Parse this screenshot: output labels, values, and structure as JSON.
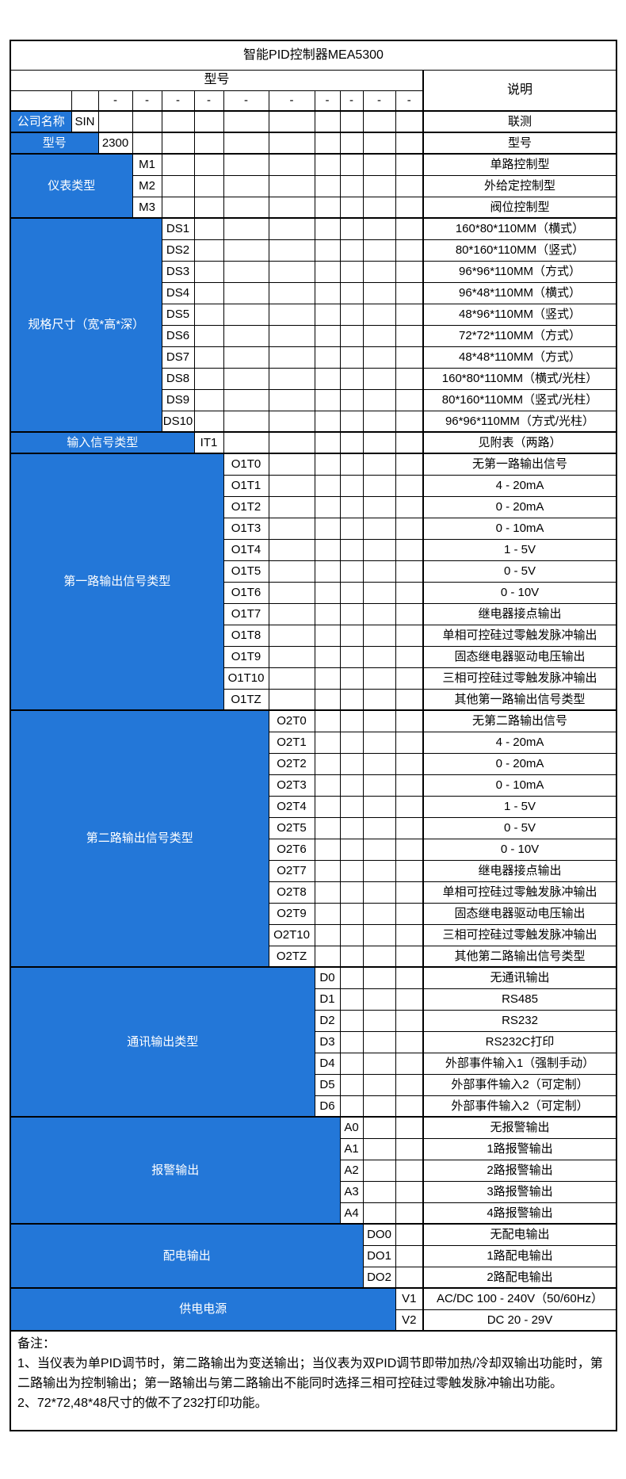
{
  "colors": {
    "label_bg": "#2377D8",
    "label_text": "#ffffff",
    "grid_line": "#000000"
  },
  "table": {
    "title": "智能PID控制器MEA5300",
    "model_header": "型号",
    "desc_header": "说明",
    "dash": "-",
    "dash_columns": [
      2,
      3,
      4,
      5,
      6,
      7,
      8,
      9,
      10,
      11
    ]
  },
  "sections": [
    {
      "label": "公司名称",
      "rows": [
        {
          "code": "SIN",
          "desc": "联测"
        }
      ]
    },
    {
      "label": "型号",
      "rows": [
        {
          "code": "2300",
          "desc": "型号"
        }
      ]
    },
    {
      "label": "仪表类型",
      "rows": [
        {
          "code": "M1",
          "desc": "单路控制型"
        },
        {
          "code": "M2",
          "desc": "外给定控制型"
        },
        {
          "code": "M3",
          "desc": "阀位控制型"
        }
      ]
    },
    {
      "label": "规格尺寸（宽*高*深）",
      "rows": [
        {
          "code": "DS1",
          "desc": "160*80*110MM（横式）"
        },
        {
          "code": "DS2",
          "desc": "80*160*110MM（竖式）"
        },
        {
          "code": "DS3",
          "desc": "96*96*110MM（方式）"
        },
        {
          "code": "DS4",
          "desc": "96*48*110MM（横式）"
        },
        {
          "code": "DS5",
          "desc": "48*96*110MM（竖式）"
        },
        {
          "code": "DS6",
          "desc": "72*72*110MM（方式）"
        },
        {
          "code": "DS7",
          "desc": "48*48*110MM（方式）"
        },
        {
          "code": "DS8",
          "desc": "160*80*110MM（横式/光柱）"
        },
        {
          "code": "DS9",
          "desc": "80*160*110MM（竖式/光柱）"
        },
        {
          "code": "DS10",
          "desc": "96*96*110MM（方式/光柱）"
        }
      ]
    },
    {
      "label": "输入信号类型",
      "rows": [
        {
          "code": "IT1",
          "desc": "见附表（两路）"
        }
      ]
    },
    {
      "label": "第一路输出信号类型",
      "rows": [
        {
          "code": "O1T0",
          "desc": "无第一路输出信号"
        },
        {
          "code": "O1T1",
          "desc": "4 - 20mA"
        },
        {
          "code": "O1T2",
          "desc": "0 - 20mA"
        },
        {
          "code": "O1T3",
          "desc": "0 - 10mA"
        },
        {
          "code": "O1T4",
          "desc": "1 - 5V"
        },
        {
          "code": "O1T5",
          "desc": "0 - 5V"
        },
        {
          "code": "O1T6",
          "desc": "0 - 10V"
        },
        {
          "code": "O1T7",
          "desc": "继电器接点输出"
        },
        {
          "code": "O1T8",
          "desc": "单相可控硅过零触发脉冲输出"
        },
        {
          "code": "O1T9",
          "desc": "固态继电器驱动电压输出"
        },
        {
          "code": "O1T10",
          "desc": "三相可控硅过零触发脉冲输出"
        },
        {
          "code": "O1TZ",
          "desc": "其他第一路输出信号类型"
        }
      ]
    },
    {
      "label": "第二路输出信号类型",
      "rows": [
        {
          "code": "O2T0",
          "desc": "无第二路输出信号"
        },
        {
          "code": "O2T1",
          "desc": "4 - 20mA"
        },
        {
          "code": "O2T2",
          "desc": "0 - 20mA"
        },
        {
          "code": "O2T3",
          "desc": "0 - 10mA"
        },
        {
          "code": "O2T4",
          "desc": "1 - 5V"
        },
        {
          "code": "O2T5",
          "desc": "0 - 5V"
        },
        {
          "code": "O2T6",
          "desc": "0 - 10V"
        },
        {
          "code": "O2T7",
          "desc": "继电器接点输出"
        },
        {
          "code": "O2T8",
          "desc": "单相可控硅过零触发脉冲输出"
        },
        {
          "code": "O2T9",
          "desc": "固态继电器驱动电压输出"
        },
        {
          "code": "O2T10",
          "desc": "三相可控硅过零触发脉冲输出"
        },
        {
          "code": "O2TZ",
          "desc": "其他第二路输出信号类型"
        }
      ]
    },
    {
      "label": "通讯输出类型",
      "rows": [
        {
          "code": "D0",
          "desc": "无通讯输出"
        },
        {
          "code": "D1",
          "desc": "RS485"
        },
        {
          "code": "D2",
          "desc": "RS232"
        },
        {
          "code": "D3",
          "desc": "RS232C打印"
        },
        {
          "code": "D4",
          "desc": "外部事件输入1（强制手动）"
        },
        {
          "code": "D5",
          "desc": "外部事件输入2（可定制）"
        },
        {
          "code": "D6",
          "desc": "外部事件输入2（可定制）"
        }
      ]
    },
    {
      "label": "报警输出",
      "rows": [
        {
          "code": "A0",
          "desc": "无报警输出"
        },
        {
          "code": "A1",
          "desc": "1路报警输出"
        },
        {
          "code": "A2",
          "desc": "2路报警输出"
        },
        {
          "code": "A3",
          "desc": "3路报警输出"
        },
        {
          "code": "A4",
          "desc": "4路报警输出"
        }
      ]
    },
    {
      "label": "配电输出",
      "rows": [
        {
          "code": "DO0",
          "desc": "无配电输出"
        },
        {
          "code": "DO1",
          "desc": "1路配电输出"
        },
        {
          "code": "DO2",
          "desc": "2路配电输出"
        }
      ]
    },
    {
      "label": "供电电源",
      "rows": [
        {
          "code": "V1",
          "desc": "AC/DC 100 - 240V（50/60Hz）"
        },
        {
          "code": "V2",
          "desc": "DC 20 - 29V"
        }
      ]
    }
  ],
  "notes": {
    "title": "备注：",
    "items": [
      "1、当仪表为单PID调节时，第二路输出为变送输出；当仪表为双PID调节即带加热/冷却双输出功能时，第二路输出为控制输出；第一路输出与第二路输出不能同时选择三相可控硅过零触发脉冲输出功能。",
      "2、72*72,48*48尺寸的做不了232打印功能。"
    ]
  }
}
